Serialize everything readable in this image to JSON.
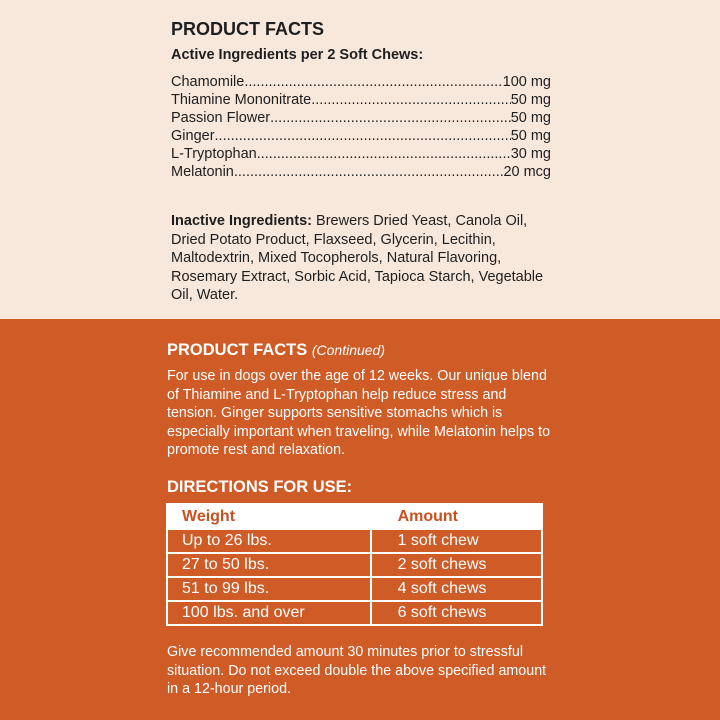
{
  "product_facts": {
    "title": "PRODUCT FACTS",
    "active_heading": "Active Ingredients per 2 Soft Chews:",
    "active_ingredients": [
      {
        "name": "Chamomile ",
        "amount": " 100 mg"
      },
      {
        "name": "Thiamine Mononitrate",
        "amount": " 50 mg"
      },
      {
        "name": "Passion Flower",
        "amount": " 50 mg"
      },
      {
        "name": "Ginger",
        "amount": " 50 mg"
      },
      {
        "name": "L-Tryptophan ",
        "amount": " 30 mg"
      },
      {
        "name": "Melatonin",
        "amount": " 20 mcg"
      }
    ],
    "inactive_label": "Inactive Ingredients:",
    "inactive_text": " Brewers Dried Yeast, Canola Oil, Dried Potato Product, Flaxseed, Glycerin, Lecithin, Maltodextrin, Mixed Tocopherols, Natural Flavoring, Rosemary Extract, Sorbic Acid, Tapioca Starch, Vegetable Oil, Water."
  },
  "continued": {
    "title": "PRODUCT FACTS ",
    "subtitle": "(Continued)",
    "description": "For use in dogs over the age of 12 weeks. Our unique blend of Thiamine and L-Tryptophan help reduce stress and tension. Ginger supports sensitive stomachs which is especially important when traveling, while Melatonin helps to promote rest and relaxation."
  },
  "directions": {
    "title": "DIRECTIONS FOR USE:",
    "headers": [
      "Weight",
      "Amount"
    ],
    "rows": [
      [
        "Up to 26 lbs.",
        "1 soft chew"
      ],
      [
        "27 to 50 lbs.",
        "2 soft chews"
      ],
      [
        "51 to 99 lbs.",
        "4 soft chews"
      ],
      [
        "100 lbs. and over",
        "6 soft chews"
      ]
    ],
    "note": "Give recommended amount 30 minutes prior to stressful situation. Do not exceed double the above specified amount in a 12-hour period."
  },
  "colors": {
    "top_background": "#f8e8dc",
    "bottom_background": "#cf5b27",
    "header_text": "#c9501f"
  }
}
